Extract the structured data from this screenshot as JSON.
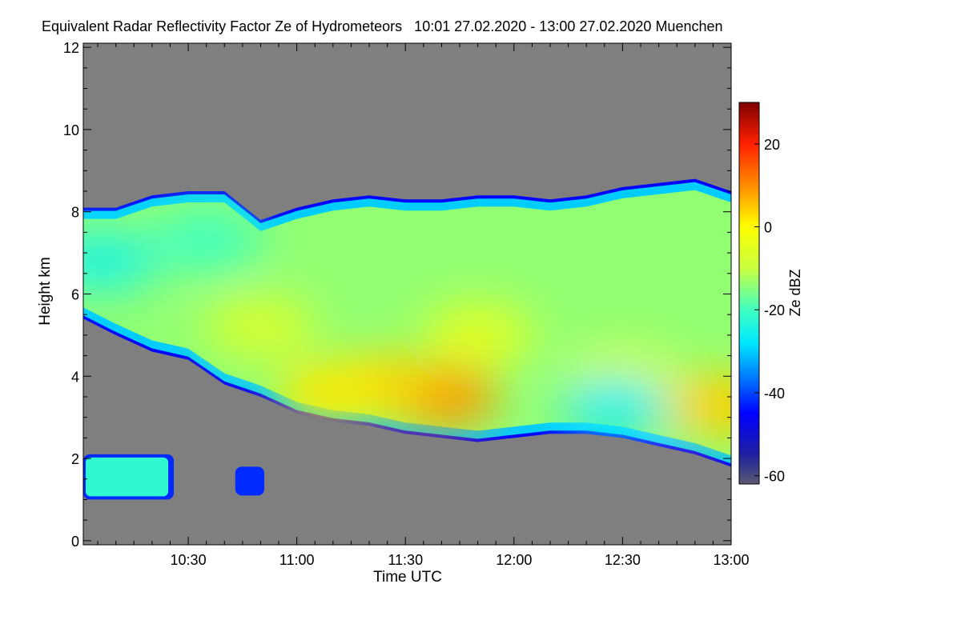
{
  "chart_data": {
    "type": "heatmap",
    "title": "Equivalent Radar Reflectivity Factor Ze of Hydrometeors   10:01 27.02.2020 - 13:00 27.02.2020 Muenchen",
    "xlabel": "Time UTC",
    "ylabel": "Height km",
    "x_unit": "minutes since 10:00 UTC",
    "xlim": [
      1,
      180
    ],
    "ylim": [
      -0.1,
      12.1
    ],
    "x_ticks": [
      {
        "value": 30,
        "label": "10:30"
      },
      {
        "value": 60,
        "label": "11:00"
      },
      {
        "value": 90,
        "label": "11:30"
      },
      {
        "value": 120,
        "label": "12:00"
      },
      {
        "value": 150,
        "label": "12:30"
      },
      {
        "value": 180,
        "label": "13:00"
      }
    ],
    "y_ticks": [
      {
        "value": 0,
        "label": "0"
      },
      {
        "value": 2,
        "label": "2"
      },
      {
        "value": 4,
        "label": "4"
      },
      {
        "value": 6,
        "label": "6"
      },
      {
        "value": 8,
        "label": "8"
      },
      {
        "value": 10,
        "label": "10"
      },
      {
        "value": 12,
        "label": "12"
      }
    ],
    "background_color": "#7f7f7f",
    "colorbar": {
      "label": "Ze dBZ",
      "range": [
        -62,
        30
      ],
      "ticks": [
        {
          "value": 20,
          "label": "20"
        },
        {
          "value": 0,
          "label": "0"
        },
        {
          "value": -20,
          "label": "-20"
        },
        {
          "value": -40,
          "label": "-40"
        },
        {
          "value": -60,
          "label": "-60"
        }
      ],
      "stops": [
        {
          "value": -62,
          "color": "#5a5a6e"
        },
        {
          "value": -55,
          "color": "#2020a0"
        },
        {
          "value": -45,
          "color": "#0000ff"
        },
        {
          "value": -37,
          "color": "#0070ff"
        },
        {
          "value": -28,
          "color": "#00e8ff"
        },
        {
          "value": -20,
          "color": "#40ffc0"
        },
        {
          "value": -10,
          "color": "#c8ff40"
        },
        {
          "value": 0,
          "color": "#ffff00"
        },
        {
          "value": 10,
          "color": "#ff8c00"
        },
        {
          "value": 20,
          "color": "#ff2000"
        },
        {
          "value": 30,
          "color": "#7f0000"
        }
      ]
    },
    "main_layer": {
      "times": [
        1,
        10,
        20,
        30,
        40,
        50,
        60,
        70,
        80,
        90,
        100,
        110,
        120,
        130,
        140,
        150,
        160,
        170,
        180
      ],
      "top_km": [
        8.1,
        8.1,
        8.4,
        8.5,
        8.5,
        7.8,
        8.1,
        8.3,
        8.4,
        8.3,
        8.3,
        8.4,
        8.4,
        8.3,
        8.4,
        8.6,
        8.7,
        8.8,
        8.5
      ],
      "base_km": [
        5.4,
        5.0,
        4.6,
        4.4,
        3.8,
        3.5,
        3.1,
        2.9,
        2.8,
        2.6,
        2.5,
        2.4,
        2.5,
        2.6,
        2.6,
        2.5,
        2.3,
        2.1,
        1.8
      ],
      "core": [
        {
          "t": 100,
          "z": 3.5,
          "ze": 9
        },
        {
          "t": 83,
          "z": 3.8,
          "ze": 4
        },
        {
          "t": 70,
          "z": 3.6,
          "ze": 2
        },
        {
          "t": 176,
          "z": 3.3,
          "ze": 4
        },
        {
          "t": 150,
          "z": 3.9,
          "ze": -3
        },
        {
          "t": 110,
          "z": 5.0,
          "ze": -5
        },
        {
          "t": 50,
          "z": 5.2,
          "ze": -7
        },
        {
          "t": 6,
          "z": 6.8,
          "ze": -24
        },
        {
          "t": 35,
          "z": 7.3,
          "ze": -20
        },
        {
          "t": 148,
          "z": 3.3,
          "ze": -26
        }
      ]
    },
    "low_cells": [
      {
        "t_start": 1,
        "t_end": 26,
        "z_bottom": 1.0,
        "z_top": 2.1,
        "ze": -22
      },
      {
        "t_start": 43,
        "t_end": 51,
        "z_bottom": 1.1,
        "z_top": 1.8,
        "ze": -42
      }
    ]
  }
}
